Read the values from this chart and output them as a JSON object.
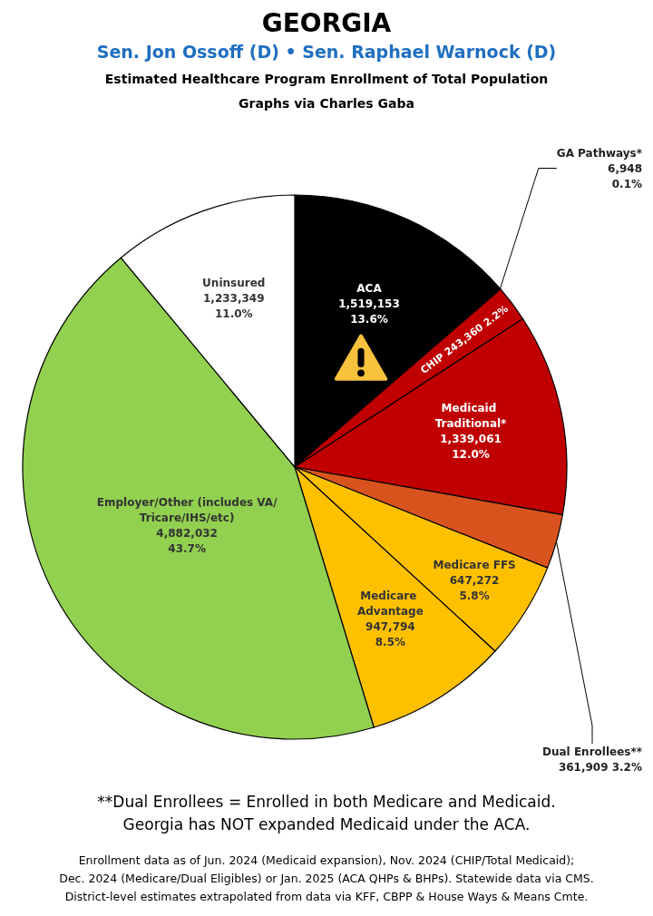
{
  "chart_data": {
    "type": "pie",
    "title": "GEORGIA",
    "subtitle": "Sen. Jon Ossoff (D) • Sen. Raphael Warnock (D)",
    "categories": [
      "ACA",
      "GA Pathways*",
      "CHIP",
      "Medicaid Traditional*",
      "Dual Enrollees**",
      "Medicare FFS",
      "Medicare Advantage",
      "Employer/Other (includes VA/Tricare/IHS/etc)",
      "Uninsured"
    ],
    "values": [
      1519153,
      6948,
      243360,
      1339061,
      361909,
      647272,
      947794,
      4882032,
      1233349
    ],
    "value_labels": [
      "1,519,153\n13.6%",
      "6,948\n0.1%",
      "243,360 2.2%",
      "1,339,061\n12.0%",
      "361,909 3.2%",
      "647,272\n5.8%",
      "947,794\n8.5%",
      "4,882,032\n43.7%",
      "1,233,349\n11.0%"
    ],
    "colors": [
      "#000000",
      "#1a1a1a",
      "#c00000",
      "#c00000",
      "#d9531e",
      "#ffc000",
      "#ffc000",
      "#92d050",
      "#ffffff"
    ],
    "annotations": [
      "Estimated Healthcare Program Enrollment of Total Population",
      "Graphs via Charles Gaba",
      "**Dual Enrollees = Enrolled in both Medicare and Medicaid.",
      "Georgia has NOT expanded Medicaid under the ACA.",
      "Enrollment data as of Jun. 2024 (Medicaid expansion), Nov. 2024 (CHIP/Total Medicaid);",
      "Dec. 2024 (Medicare/Dual Eligibles) or Jan. 2025 (ACA QHPs & BHPs). Statewide data via CMS.",
      "District-level estimates extrapolated from data via KFF, CBPP & House Ways & Means Cmte."
    ],
    "legend": false
  }
}
